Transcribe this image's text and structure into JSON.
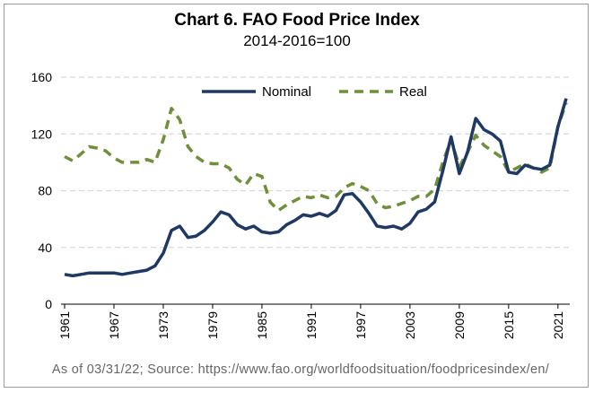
{
  "header": {
    "title": "Chart 6. FAO Food Price Index",
    "subtitle": "2014-2016=100"
  },
  "footer": {
    "source": "As of 03/31/22; Source: https://www.fao.org/worldfoodsituation/foodpricesindex/en/"
  },
  "colors": {
    "nominal": "#1f3864",
    "real": "#6f8f3a",
    "grid": "#d9d9d9"
  },
  "chart_data": {
    "type": "line",
    "title": "Chart 6. FAO Food Price Index",
    "subtitle": "2014-2016=100",
    "xlabel": "",
    "ylabel": "",
    "ylim": [
      0,
      160
    ],
    "yticks": [
      0,
      40,
      80,
      120,
      160
    ],
    "xlim": [
      1961,
      2022
    ],
    "xticks": [
      1961,
      1967,
      1973,
      1979,
      1985,
      1991,
      1997,
      2003,
      2009,
      2015,
      2021
    ],
    "grid": true,
    "legend": "top-center",
    "x": [
      1961,
      1962,
      1963,
      1964,
      1965,
      1966,
      1967,
      1968,
      1969,
      1970,
      1971,
      1972,
      1973,
      1974,
      1975,
      1976,
      1977,
      1978,
      1979,
      1980,
      1981,
      1982,
      1983,
      1984,
      1985,
      1986,
      1987,
      1988,
      1989,
      1990,
      1991,
      1992,
      1993,
      1994,
      1995,
      1996,
      1997,
      1998,
      1999,
      2000,
      2001,
      2002,
      2003,
      2004,
      2005,
      2006,
      2007,
      2008,
      2009,
      2010,
      2011,
      2012,
      2013,
      2014,
      2015,
      2016,
      2017,
      2018,
      2019,
      2020,
      2021,
      2022
    ],
    "series": [
      {
        "name": "Nominal",
        "style": "solid",
        "values": [
          21,
          20,
          21,
          22,
          22,
          22,
          22,
          21,
          22,
          23,
          24,
          27,
          36,
          52,
          55,
          47,
          48,
          52,
          58,
          65,
          63,
          56,
          53,
          55,
          51,
          50,
          51,
          56,
          59,
          63,
          62,
          64,
          62,
          66,
          77,
          78,
          72,
          64,
          55,
          54,
          55,
          53,
          57,
          65,
          67,
          72,
          94,
          118,
          92,
          107,
          131,
          123,
          120,
          115,
          93,
          92,
          98,
          96,
          95,
          98,
          125,
          145
        ]
      },
      {
        "name": "Real",
        "style": "dashed",
        "values": [
          104,
          101,
          106,
          111,
          110,
          108,
          103,
          100,
          100,
          100,
          102,
          100,
          116,
          138,
          130,
          111,
          104,
          100,
          99,
          99,
          96,
          88,
          84,
          92,
          90,
          72,
          66,
          70,
          73,
          76,
          75,
          77,
          75,
          76,
          82,
          85,
          83,
          80,
          71,
          68,
          69,
          71,
          73,
          76,
          76,
          81,
          100,
          116,
          97,
          107,
          119,
          112,
          108,
          104,
          93,
          96,
          99,
          96,
          93,
          96,
          125,
          142
        ]
      }
    ]
  }
}
